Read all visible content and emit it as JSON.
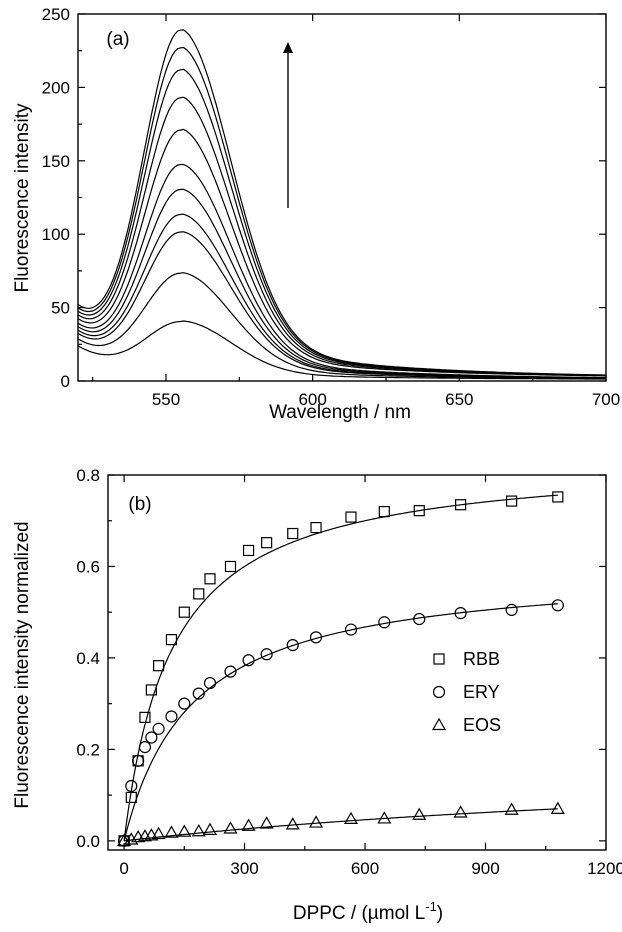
{
  "chart_data": [
    {
      "type": "line",
      "panel_label": "(a)",
      "xlabel": "Wavelength / nm",
      "ylabel": "Fluorescence intensity",
      "xlim": [
        520,
        700
      ],
      "ylim": [
        0,
        250
      ],
      "xticks": [
        550,
        600,
        650,
        700
      ],
      "yticks": [
        0,
        50,
        100,
        150,
        200,
        250
      ],
      "annotation": "upward arrow indicating increasing intensity",
      "peak_wavelength": 555,
      "series": [
        {
          "peak": 40,
          "left_edge": 23,
          "right_edge": 1
        },
        {
          "peak": 73,
          "left_edge": 27,
          "right_edge": 1
        },
        {
          "peak": 101,
          "left_edge": 30,
          "right_edge": 1
        },
        {
          "peak": 113,
          "left_edge": 32,
          "right_edge": 1
        },
        {
          "peak": 130,
          "left_edge": 34,
          "right_edge": 1
        },
        {
          "peak": 147,
          "left_edge": 36,
          "right_edge": 1
        },
        {
          "peak": 170,
          "left_edge": 38,
          "right_edge": 2
        },
        {
          "peak": 192,
          "left_edge": 40,
          "right_edge": 2
        },
        {
          "peak": 211,
          "left_edge": 42,
          "right_edge": 2
        },
        {
          "peak": 226,
          "left_edge": 44,
          "right_edge": 2
        },
        {
          "peak": 238,
          "left_edge": 46,
          "right_edge": 2
        }
      ]
    },
    {
      "type": "scatter",
      "panel_label": "(b)",
      "xlabel_main": "DPPC / (µmol L",
      "xlabel_sup": "-1",
      "xlabel_end": ")",
      "ylabel": "Fluorescence intensity normalized",
      "xlim": [
        -40,
        1200
      ],
      "ylim": [
        -0.02,
        0.8
      ],
      "xticks": [
        0,
        300,
        600,
        900,
        1200
      ],
      "yticks": [
        0.0,
        0.2,
        0.4,
        0.6,
        0.8
      ],
      "legend_position": "right",
      "series": [
        {
          "name": "RBB",
          "marker": "square",
          "points": [
            [
              0,
              0.0
            ],
            [
              18,
              0.095
            ],
            [
              35,
              0.175
            ],
            [
              52,
              0.27
            ],
            [
              68,
              0.33
            ],
            [
              86,
              0.383
            ],
            [
              118,
              0.44
            ],
            [
              150,
              0.5
            ],
            [
              186,
              0.54
            ],
            [
              214,
              0.573
            ],
            [
              265,
              0.6
            ],
            [
              310,
              0.635
            ],
            [
              355,
              0.652
            ],
            [
              420,
              0.672
            ],
            [
              478,
              0.685
            ],
            [
              565,
              0.708
            ],
            [
              648,
              0.72
            ],
            [
              735,
              0.722
            ],
            [
              838,
              0.735
            ],
            [
              965,
              0.743
            ],
            [
              1080,
              0.752
            ]
          ],
          "fit": {
            "model": "hyperbolic",
            "max": 0.84,
            "k": 120
          }
        },
        {
          "name": "ERY",
          "marker": "circle",
          "points": [
            [
              0,
              0.0
            ],
            [
              18,
              0.12
            ],
            [
              35,
              0.175
            ],
            [
              52,
              0.205
            ],
            [
              68,
              0.226
            ],
            [
              86,
              0.245
            ],
            [
              118,
              0.272
            ],
            [
              150,
              0.3
            ],
            [
              186,
              0.322
            ],
            [
              214,
              0.345
            ],
            [
              265,
              0.37
            ],
            [
              310,
              0.395
            ],
            [
              355,
              0.408
            ],
            [
              420,
              0.428
            ],
            [
              478,
              0.445
            ],
            [
              565,
              0.462
            ],
            [
              648,
              0.478
            ],
            [
              735,
              0.485
            ],
            [
              838,
              0.498
            ],
            [
              965,
              0.505
            ],
            [
              1080,
              0.515
            ]
          ],
          "fit": {
            "model": "hyperbolic",
            "max": 0.6,
            "k": 170
          }
        },
        {
          "name": "EOS",
          "marker": "triangle",
          "points": [
            [
              0,
              0.0
            ],
            [
              18,
              0.003
            ],
            [
              35,
              0.008
            ],
            [
              52,
              0.01
            ],
            [
              68,
              0.012
            ],
            [
              86,
              0.015
            ],
            [
              118,
              0.018
            ],
            [
              150,
              0.02
            ],
            [
              186,
              0.021
            ],
            [
              214,
              0.024
            ],
            [
              265,
              0.027
            ],
            [
              310,
              0.033
            ],
            [
              355,
              0.038
            ],
            [
              420,
              0.036
            ],
            [
              478,
              0.04
            ],
            [
              565,
              0.048
            ],
            [
              648,
              0.049
            ],
            [
              735,
              0.057
            ],
            [
              838,
              0.062
            ],
            [
              965,
              0.068
            ],
            [
              1080,
              0.07
            ]
          ],
          "fit": {
            "model": "hyperbolic",
            "max": 0.2,
            "k": 2000
          }
        }
      ]
    }
  ]
}
